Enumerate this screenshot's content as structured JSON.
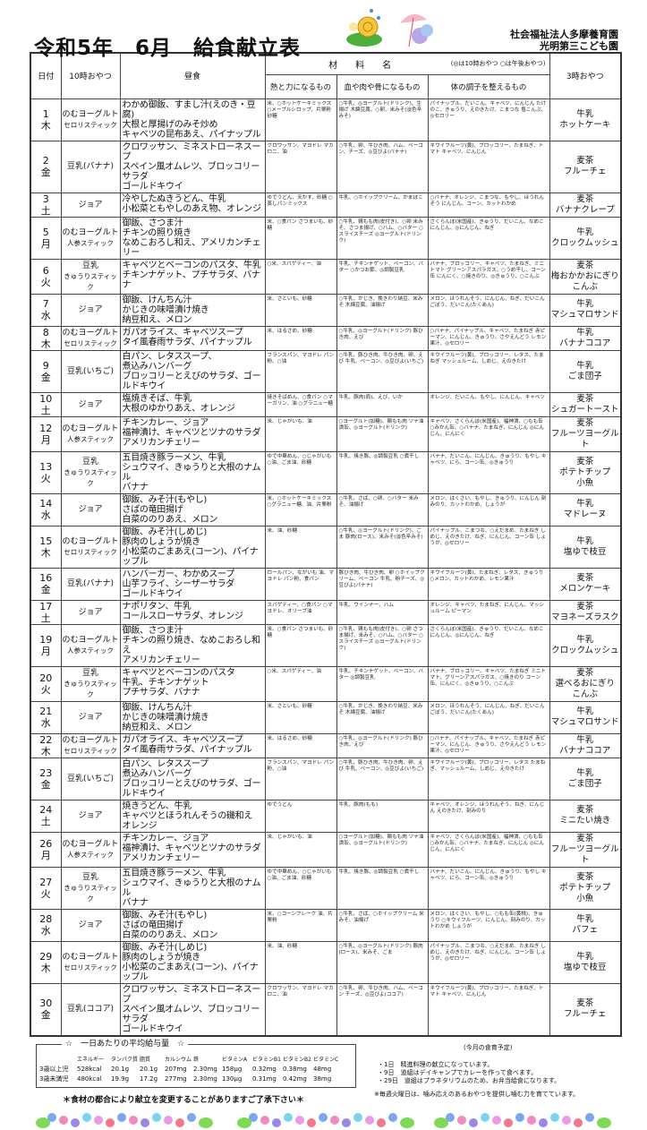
{
  "title": "令和5年　6月　給食献立表",
  "org": {
    "line1": "社会福祉法人多摩養育園",
    "line2": "光明第三こども園"
  },
  "header": {
    "date": "日付",
    "am": "10時おやつ",
    "lunch": "昼食",
    "ingredients": "材　　料　　名",
    "legend": "(◎は10時おやつ ○は午後おやつ)",
    "col1": "熱と力になるもの",
    "col2": "血や肉や骨になるもの",
    "col3": "体の調子を整えるもの",
    "pm": "3時おやつ"
  },
  "rows": [
    {
      "day": "1",
      "dow": "木",
      "am": [
        "のむヨーグルト",
        "セロリスティック"
      ],
      "lunch": [
        "わかめ御飯、すまし汁(えのき・豆腐)",
        "大根と厚揚げのみそ炒め",
        "キャベツの昆布あえ、パイナップル"
      ],
      "ing": [
        "米、○ホットケーキミックス ○メープルシロップ、片栗粉 砂糖",
        "○牛乳、◎ヨーグルト(ドリンク)、生揚げ 木綿豆腐、○卵、米みそ(淡色辛みそ)",
        "パイナップル、だいこん、キャベツ、にんじん たけのこ、きゅうり、えのきたけ、こまつな 塩こんぶ、◎セロリー"
      ],
      "pm": [
        "牛乳",
        "ホットケーキ"
      ]
    },
    {
      "day": "2",
      "dow": "金",
      "am": [
        "豆乳(バナナ)"
      ],
      "lunch": [
        "クロワッサン、ミネストローネスープ",
        "スペイン風オムレツ、ブロッコリーサラダ",
        "ゴールドキウイ"
      ],
      "ing": [
        "クロワッサン、マヨドレ マカロニ、油",
        "○牛乳、卵、牛ひき肉、ハム、ベーコン、チーズ、◎豆びよ(バナナ)",
        "キウイフルーツ(黄)、ブロッコリー、たまねぎ、トマト キャベツ、にんじん"
      ],
      "pm": [
        "麦茶",
        "フルーチェ"
      ]
    },
    {
      "day": "3",
      "dow": "土",
      "am": [
        "ジョア"
      ],
      "lunch": [
        "冷やしたぬきうどん、牛乳",
        "小松菜ともやしのあえ物、オレンジ"
      ],
      "ing": [
        "ゆでうどん、天かす、砂糖 ○蒸しパンミックス",
        "牛乳、○ホイップクリーム、かまぼこ",
        "○バナナ、オレンジ、こまつな、もやし、ほうれんそう にんじん、コーン、カットわかめ"
      ],
      "pm": [
        "麦茶",
        "バナナクレープ"
      ]
    },
    {
      "day": "5",
      "dow": "月",
      "am": [
        "のむヨーグルト",
        "人参スティック"
      ],
      "lunch": [
        "御飯、さつま汁",
        "チキンの照り焼き",
        "なめこおろし和え、アメリカンチェリー"
      ],
      "ing": [
        "米、○食パン さつまいも、砂糖",
        "○牛乳、鶏もも肉(皮付き)、○卵 米みそ、さつま揚げ、○ハム、○バター ○スライスチーズ ◎ヨーグルト(ドリンク)",
        "さくらんぼ(米国産)、きゅうり、だいこん、なめこ にんじん、◎にんじん、ねぎ"
      ],
      "pm": [
        "牛乳",
        "クロックムッシュ"
      ]
    },
    {
      "day": "6",
      "dow": "火",
      "am": [
        "豆乳",
        "きゅうりスティック"
      ],
      "lunch": [
        "キャベツとベーコンのパスタ、牛乳",
        "チキンナゲット、プチサラダ、バナナ"
      ],
      "ing": [
        "○米、スパゲティー、油",
        "牛乳、チキンナゲット、ベーコン、バター ○かつお節、◎調製豆乳",
        "バナナ、ブロッコリー、キャベツ、たまねぎ、ミニトマト グリーンアスパラガス、○うめ干し、コーン缶 にんにく、○焼きのり、◎きゅうり、○こんぶ"
      ],
      "pm": [
        "麦茶",
        "梅おかかおにぎり",
        "こんぶ"
      ]
    },
    {
      "day": "7",
      "dow": "水",
      "am": [
        "ジョア"
      ],
      "lunch": [
        "御飯、けんちん汁",
        "かじきの味噌漬け焼き",
        "納豆和え、メロン"
      ],
      "ing": [
        "米、さといも、砂糖",
        "○牛乳、かじき、挽きわり納豆、米みそ 木綿豆腐、油揚げ",
        "メロン、ほうれんそう、にんじん、ねぎ、だいこん ごぼう、だいこん(たくあん)"
      ],
      "pm": [
        "牛乳",
        "マシュマロサンド"
      ]
    },
    {
      "day": "8",
      "dow": "木",
      "am": [
        "のむヨーグルト",
        "セロリスティック"
      ],
      "lunch": [
        "ガパオライス、キャベツスープ",
        "タイ風春雨サラダ、パイナップル"
      ],
      "ing": [
        "米、はるさめ、砂糖",
        "○牛乳、◎ヨーグルト(ドリンク) 豚ひき肉、えび",
        "○バナナ、パイナップル、キャベツ、たまねぎ 赤ピーマン、にんじん、きゅうり、さやえんどう レモン果汁、◎セロリー"
      ],
      "pm": [
        "牛乳",
        "バナナココア"
      ]
    },
    {
      "day": "9",
      "dow": "金",
      "am": [
        "豆乳(いちご)"
      ],
      "lunch": [
        "白パン、レタススープ、",
        "煮込みハンバーグ",
        "ブロッコリーとえびのサラダ、ゴールドキウイ"
      ],
      "ing": [
        "フランスパン、マヨドレ パン粉、○油",
        "○牛乳、豚ひき肉、牛ひき肉、卵、えび 牛乳、ベーコン、◎豆びよ(いちご)",
        "キウイフルーツ(黄)、ブロッコリー、レタス、たまねぎ マッシュルーム、しめじ、えのきたけ"
      ],
      "pm": [
        "牛乳",
        "ごま団子"
      ]
    },
    {
      "day": "10",
      "dow": "土",
      "am": [
        "ジョア"
      ],
      "lunch": [
        "塩焼きそば、牛乳",
        "大根のゆかりあえ、オレンジ"
      ],
      "ing": [
        "焼きそばめん、○食パン ○マーガリン、油 ○グラニュー糖",
        "牛乳、豚肉(肩)、えび、いか",
        "オレンジ、だいこん、もやし、にんじん、キャベツ"
      ],
      "pm": [
        "麦茶",
        "シュガートースト"
      ]
    },
    {
      "day": "12",
      "dow": "月",
      "am": [
        "のむヨーグルト",
        "人参スティック"
      ],
      "lunch": [
        "チキンカレー、ジョア",
        "福神漬け、キャベツとツナのサラダ",
        "アメリカンチェリー"
      ],
      "ing": [
        "米、じゃがいも、油",
        "○ヨーグルト(加糖)、鶏もも肉 ツナ油漬缶、◎ヨーグルト(ドリンク)",
        "キャベツ、さくらんぼ(米国産)、福神漬、○もも缶 ○みかん缶、○バナナ、たまねぎ、にんじん ◎にんじん、にんにく"
      ],
      "pm": [
        "麦茶",
        "フルーツヨーグルト"
      ]
    },
    {
      "day": "13",
      "dow": "火",
      "am": [
        "豆乳",
        "きゅうりスティック"
      ],
      "lunch": [
        "五目焼き豚ラーメン、牛乳",
        "シュウマイ、きゅうりと大根のナムル",
        "バナナ"
      ],
      "ing": [
        "ゆで中華めん、○じゃがいも ○油、ごま油、砂糖",
        "牛乳、焼き豚、◎調製豆乳 ○煮干し",
        "バナナ、だいこん、にんじん、きゅうり、もやし キャベツ、にら、コーン缶、◎きゅうり"
      ],
      "pm": [
        "麦茶",
        "ポテトチップ",
        "小魚"
      ]
    },
    {
      "day": "14",
      "dow": "水",
      "am": [
        "ジョア"
      ],
      "lunch": [
        "御飯、みそ汁(もやし)",
        "さばの竜田揚げ",
        "白菜ののりあえ、メロン"
      ],
      "ing": [
        "米、○ホットケーキミックス ○グラニュー糖、油、片栗粉",
        "○牛乳、さば、○卵、○バター 米みそ、油揚げ",
        "メロン、はくさい、もやし、きゅうり、にんじん 刻みのり、カットわかめ、しょうが"
      ],
      "pm": [
        "牛乳",
        "マドレーヌ"
      ]
    },
    {
      "day": "15",
      "dow": "木",
      "am": [
        "のむヨーグルト",
        "セロリスティック"
      ],
      "lunch": [
        "御飯、みそ汁(しめじ)",
        "豚肉のしょうが焼き",
        "小松菜のごまあえ(コーン)、パイナップル"
      ],
      "ing": [
        "米、油、砂糖",
        "○牛乳、◎ヨーグルト(ドリンク)、ごま 豚肉(ロース)、米みそ(淡色辛みそ)",
        "パイナップル、こまつな、○えだまめ、たまねぎ しめじ、えのきたけ、ねぎ、にんじん、コーン缶 しょうが、◎セロリー"
      ],
      "pm": [
        "牛乳",
        "塩ゆで枝豆"
      ]
    },
    {
      "day": "16",
      "dow": "金",
      "am": [
        "豆乳(バナナ)"
      ],
      "lunch": [
        "ハンバーガー、わかめスープ",
        "山芋フライ、シーザーサラダ",
        "ゴールドキウイ"
      ],
      "ing": [
        "ロールパン、ながいも 油、マヨドレ パン粉、食パン",
        "豚ひき肉、牛ひき肉、卵 ○ホイップクリーム、ベーコン 牛乳、粉チーズ、◎豆びよ(バナナ)",
        "キウイフルーツ(黄)、たまねぎ、レタス、きゅうり ○メロン、カットわかめ、レモン果汁"
      ],
      "pm": [
        "麦茶",
        "メロンケーキ"
      ]
    },
    {
      "day": "17",
      "dow": "土",
      "am": [
        "ジョア"
      ],
      "lunch": [
        "ナポリタン、牛乳",
        "コールスローサラダ、オレンジ"
      ],
      "ing": [
        "スパゲティー、○食パン ○マヨドレ、オリーブ油",
        "牛乳、ウインナー、ハム",
        "オレンジ、キャベツ、たまねぎ、にんじん、マッシュルーム ピーマン"
      ],
      "pm": [
        "麦茶",
        "マヨネーズラスク"
      ]
    },
    {
      "day": "19",
      "dow": "月",
      "am": [
        "のむヨーグルト",
        "人参スティック"
      ],
      "lunch": [
        "御飯、さつま汁",
        "チキンの照り焼き、なめこおろし和え",
        "アメリカンチェリー"
      ],
      "ing": [
        "米、○食パン さつまいも、砂糖",
        "○牛乳、鶏もも肉(皮付き)、○卵 さつま揚げ、米みそ、○ハム、○バター ○スライスチーズ ◎ヨーグルト(ドリンク)",
        "さくらんぼ(米国産)、きゅうり、だいこん、なめこ にんじん、◎にんじん、ねぎ"
      ],
      "pm": [
        "牛乳",
        "クロックムッシュ"
      ]
    },
    {
      "day": "20",
      "dow": "火",
      "am": [
        "豆乳",
        "きゅうりスティック"
      ],
      "lunch": [
        "キャベツとベーコンのパスタ",
        "牛乳、チキンナゲット",
        "プチサラダ、バナナ"
      ],
      "ing": [
        "○米、スパゲティー、油",
        "牛乳、チキンナゲット、ベーコン、バター ◎調製豆乳",
        "バナナ、ブロッコリー、キャベツ、たまねぎ ミニトマト、グリーンアスパラガス、○焼きのり コーン缶、にんにく、◎きゅうり、○こんぶ"
      ],
      "pm": [
        "麦茶",
        "選べるおにぎり",
        "こんぶ"
      ]
    },
    {
      "day": "21",
      "dow": "水",
      "am": [
        "ジョア"
      ],
      "lunch": [
        "御飯、けんちん汁",
        "かじきの味噌漬け焼き",
        "納豆和え、メロン"
      ],
      "ing": [
        "米、さといも、砂糖",
        "○牛乳、かじき、挽きわり納豆、米みそ 木綿豆腐、油揚げ",
        "メロン、ほうれんそう、にんじん、ねぎ、だいこん ごぼう、だいこん(たくあん)"
      ],
      "pm": [
        "牛乳",
        "マシュマロサンド"
      ]
    },
    {
      "day": "22",
      "dow": "木",
      "am": [
        "のむヨーグルト",
        "セロリスティック"
      ],
      "lunch": [
        "ガパオライス、キャベツスープ",
        "タイ風春雨サラダ、パイナップル"
      ],
      "ing": [
        "米、はるさめ、砂糖",
        "○牛乳、◎ヨーグルト(ドリンク) 豚ひき肉、えび",
        "○バナナ、パイナップル、キャベツ、たまねぎ 赤ピーマン、にんじん、きゅうり、さやえんどう レモン果汁、◎セロリー"
      ],
      "pm": [
        "牛乳",
        "バナナココア"
      ]
    },
    {
      "day": "23",
      "dow": "金",
      "am": [
        "豆乳(いちご)"
      ],
      "lunch": [
        "白パン、レタススープ",
        "煮込みハンバーグ",
        "ブロッコリーとえびのサラダ、ゴールドキウイ"
      ],
      "ing": [
        "フランスパン、マヨドレ パン粉、○油",
        "○牛乳、豚ひき肉、牛ひき肉、卵、えび 牛乳、ベーコン、◎豆びよ(いちご)",
        "キウイフルーツ(黄)、ブロッコリー、レタス たまねぎ、マッシュルーム、しめじ、えのきたけ"
      ],
      "pm": [
        "牛乳",
        "ごま団子"
      ]
    },
    {
      "day": "24",
      "dow": "土",
      "am": [
        "ジョア"
      ],
      "lunch": [
        "焼きうどん、牛乳",
        "キャベツとほうれんそうの磯和え",
        "オレンジ"
      ],
      "ing": [
        "ゆでうどん",
        "牛乳、豚肉(もも)",
        "キャベツ、オレンジ、ほうれんそう、ねぎ、にんじん えのきたけ、刻みのり"
      ],
      "pm": [
        "麦茶",
        "ミニたい焼き"
      ]
    },
    {
      "day": "26",
      "dow": "月",
      "am": [
        "のむヨーグルト",
        "人参スティック"
      ],
      "lunch": [
        "チキンカレー、ジョア",
        "福神漬け、キャベツとツナのサラダ",
        "アメリカンチェリー"
      ],
      "ing": [
        "米、じゃがいも、油",
        "○ヨーグルト(加糖)、鶏もも肉 ツナ油漬缶、◎ヨーグルト(ドリンク)",
        "キャベツ、さくらんぼ(米国産)、福神漬、○もも缶 ○みかん缶、○バナナ、たまねぎ、にんじん ◎にんじん、にんにく"
      ],
      "pm": [
        "麦茶",
        "フルーツヨーグルト"
      ]
    },
    {
      "day": "27",
      "dow": "火",
      "am": [
        "豆乳",
        "きゅうりスティック"
      ],
      "lunch": [
        "五目焼き豚ラーメン、牛乳",
        "シュウマイ、きゅうりと大根のナムル",
        "バナナ"
      ],
      "ing": [
        "ゆで中華めん、○じゃがいも ○油、ごま油、砂糖",
        "牛乳、焼き豚、◎調製豆乳 ○煮干し",
        "バナナ、だいこん、にんじん、きゅうり、もやし キャベツ、にら、コーン缶、◎きゅうり"
      ],
      "pm": [
        "麦茶",
        "ポテトチップ",
        "小魚"
      ]
    },
    {
      "day": "28",
      "dow": "水",
      "am": [
        "ジョア"
      ],
      "lunch": [
        "御飯、みそ汁(もやし)",
        "さばの竜田揚げ",
        "白菜ののりあえ、メロン"
      ],
      "ing": [
        "米、○コーンフレーク 油、片栗粉",
        "○牛乳、さば、○ホイップクリーム 米みそ、油揚げ",
        "メロン、はくさい、もやし、○もも缶(黄桃)、きゅうり ○キウイフルーツ、にんじん、刻みのり、カットわかめ しょうが"
      ],
      "pm": [
        "牛乳",
        "パフェ"
      ]
    },
    {
      "day": "29",
      "dow": "木",
      "am": [
        "のむヨーグルト",
        "セロリスティック"
      ],
      "lunch": [
        "御飯、みそ汁(しめじ)",
        "豚肉のしょうが焼き",
        "小松菜のごまあえ(コーン)、パイナップル"
      ],
      "ing": [
        "米、油、砂糖",
        "○牛乳、◎ヨーグルト(ドリンク) 豚肉(ロース)、米みそ、ごま",
        "パイナップル、こまつな、○えだまめ、たまねぎ しめじ、えのきたけ、ねぎ、にんじん、コーン缶 しょうが、◎セロリー"
      ],
      "pm": [
        "牛乳",
        "塩ゆで枝豆"
      ]
    },
    {
      "day": "30",
      "dow": "金",
      "am": [
        "豆乳(ココア)"
      ],
      "lunch": [
        "クロワッサン、ミネストローネスープ",
        "スペイン風オムレツ、ブロッコリーサラダ",
        "ゴールドキウイ"
      ],
      "ing": [
        "クロワッサン、マヨドレ マカロニ、油",
        "○牛乳、卵、牛ひき肉、ハム、ベーコン チーズ、◎豆びよ(ココア)",
        "キウイフルーツ(黄)、ブロッコリー、たまねぎ、トマト キャベツ、にんじん"
      ],
      "pm": [
        "麦茶",
        "フルーチェ"
      ]
    }
  ],
  "nutrition": {
    "heading": "☆　一日あたりの平均給与量　☆",
    "columns": [
      "",
      "エネルギー",
      "タンパク質",
      "脂質",
      "カルシウム",
      "鉄",
      "ビタミンA",
      "ビタミンB1",
      "ビタミンB2",
      "ビタミンC"
    ],
    "rows": [
      [
        "3歳以上児",
        "528kcal",
        "20.1g",
        "20.1g",
        "207mg",
        "2.30mg",
        "158μg",
        "0.32mg",
        "0.38mg",
        "48mg"
      ],
      [
        "3歳未満児",
        "480kcal",
        "19.9g",
        "17.2g",
        "277mg",
        "2.30mg",
        "130μg",
        "0.31mg",
        "0.42mg",
        "38mg"
      ]
    ]
  },
  "plan": {
    "title": "(今月の食育予定)",
    "items": [
      "・1日　精進料理の献立になっています。",
      "・9日　道組はデイキャンプでカレーを作って食べます。",
      "・29日　道組はプラネタリウムのため、お弁当給食になります。"
    ],
    "note": "※毎週火曜日は、噛み応えのあるおやつを提供し噛む力を育てています。"
  },
  "caution": "＊食材の都合により献立を変更することがありますご了承下さい＊",
  "colors": {
    "border": "#333333",
    "leaf": "#7ed957",
    "flowerBlue": "#7aa8f0",
    "flowerPink": "#f08ac0"
  }
}
